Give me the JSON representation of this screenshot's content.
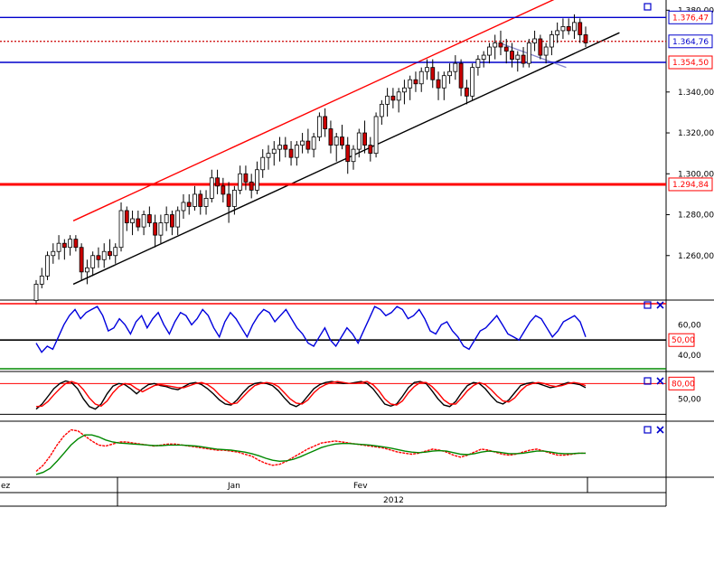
{
  "chart_data": [
    {
      "type": "candlestick",
      "panel": "price",
      "y_ticks": [
        "1.260,00",
        "1.280,00",
        "1.300,00",
        "1.320,00",
        "1.340,00",
        "1.380,00"
      ],
      "ylim": [
        1240,
        1385
      ],
      "markers": [
        {
          "label": "1.376,47",
          "value": 1376.47,
          "color": "#ff0000",
          "box": "#0000cc",
          "line": "#0000cc",
          "dash": false,
          "width": 1.4
        },
        {
          "label": "1.364,76",
          "value": 1364.76,
          "color": "#0000cc",
          "box": "#0000cc",
          "line": "#cc0000",
          "dash": true,
          "width": 1.2
        },
        {
          "label": "1.354,50",
          "value": 1354.5,
          "color": "#ff0000",
          "box": "#ff0000",
          "line": "#0000cc",
          "dash": false,
          "width": 1.6
        },
        {
          "label": "1.294,84",
          "value": 1294.84,
          "color": "#ff0000",
          "box": "#ff0000",
          "line": "#ff0000",
          "dash": false,
          "width": 3
        }
      ],
      "trend_lines": [
        {
          "color": "#ff0000",
          "points": [
            [
              0.11,
              1277
            ],
            [
              0.87,
              1391
            ]
          ]
        },
        {
          "color": "#000000",
          "points": [
            [
              0.11,
              1246
            ],
            [
              0.93,
              1369
            ]
          ]
        },
        {
          "color": "#8888cc",
          "points": [
            [
              0.75,
              1364
            ],
            [
              0.85,
              1352
            ]
          ]
        }
      ],
      "ohlc": [
        [
          1238,
          1248,
          1236,
          1246
        ],
        [
          1246,
          1254,
          1244,
          1250
        ],
        [
          1250,
          1262,
          1248,
          1260
        ],
        [
          1260,
          1266,
          1256,
          1262
        ],
        [
          1262,
          1270,
          1258,
          1266
        ],
        [
          1266,
          1268,
          1258,
          1264
        ],
        [
          1264,
          1270,
          1260,
          1268
        ],
        [
          1268,
          1270,
          1262,
          1264
        ],
        [
          1264,
          1266,
          1248,
          1252
        ],
        [
          1252,
          1258,
          1246,
          1254
        ],
        [
          1254,
          1262,
          1250,
          1260
        ],
        [
          1260,
          1264,
          1254,
          1258
        ],
        [
          1258,
          1266,
          1254,
          1262
        ],
        [
          1262,
          1268,
          1258,
          1260
        ],
        [
          1260,
          1266,
          1256,
          1264
        ],
        [
          1264,
          1286,
          1262,
          1282
        ],
        [
          1282,
          1284,
          1272,
          1276
        ],
        [
          1276,
          1282,
          1270,
          1278
        ],
        [
          1278,
          1282,
          1272,
          1274
        ],
        [
          1274,
          1282,
          1270,
          1280
        ],
        [
          1280,
          1284,
          1274,
          1276
        ],
        [
          1276,
          1280,
          1264,
          1270
        ],
        [
          1270,
          1280,
          1266,
          1276
        ],
        [
          1276,
          1284,
          1272,
          1280
        ],
        [
          1280,
          1282,
          1270,
          1274
        ],
        [
          1274,
          1284,
          1270,
          1282
        ],
        [
          1282,
          1290,
          1278,
          1286
        ],
        [
          1286,
          1290,
          1280,
          1284
        ],
        [
          1284,
          1294,
          1282,
          1290
        ],
        [
          1290,
          1292,
          1280,
          1284
        ],
        [
          1284,
          1292,
          1280,
          1288
        ],
        [
          1288,
          1302,
          1286,
          1298
        ],
        [
          1298,
          1302,
          1290,
          1294
        ],
        [
          1294,
          1298,
          1286,
          1290
        ],
        [
          1290,
          1296,
          1276,
          1284
        ],
        [
          1284,
          1294,
          1280,
          1292
        ],
        [
          1292,
          1304,
          1290,
          1300
        ],
        [
          1300,
          1304,
          1292,
          1296
        ],
        [
          1296,
          1300,
          1288,
          1292
        ],
        [
          1292,
          1306,
          1290,
          1302
        ],
        [
          1302,
          1312,
          1298,
          1308
        ],
        [
          1308,
          1314,
          1302,
          1310
        ],
        [
          1310,
          1316,
          1304,
          1312
        ],
        [
          1312,
          1318,
          1306,
          1314
        ],
        [
          1314,
          1318,
          1308,
          1312
        ],
        [
          1312,
          1316,
          1304,
          1308
        ],
        [
          1308,
          1316,
          1304,
          1314
        ],
        [
          1314,
          1320,
          1310,
          1316
        ],
        [
          1316,
          1322,
          1310,
          1312
        ],
        [
          1312,
          1320,
          1308,
          1318
        ],
        [
          1318,
          1330,
          1316,
          1328
        ],
        [
          1328,
          1332,
          1318,
          1322
        ],
        [
          1322,
          1326,
          1310,
          1314
        ],
        [
          1314,
          1320,
          1306,
          1318
        ],
        [
          1318,
          1324,
          1312,
          1314
        ],
        [
          1314,
          1318,
          1300,
          1306
        ],
        [
          1306,
          1314,
          1302,
          1312
        ],
        [
          1312,
          1322,
          1308,
          1320
        ],
        [
          1320,
          1326,
          1310,
          1314
        ],
        [
          1314,
          1318,
          1306,
          1310
        ],
        [
          1310,
          1330,
          1308,
          1328
        ],
        [
          1328,
          1336,
          1324,
          1334
        ],
        [
          1334,
          1342,
          1328,
          1338
        ],
        [
          1338,
          1342,
          1332,
          1336
        ],
        [
          1336,
          1342,
          1330,
          1340
        ],
        [
          1340,
          1346,
          1334,
          1342
        ],
        [
          1342,
          1348,
          1336,
          1346
        ],
        [
          1346,
          1350,
          1340,
          1344
        ],
        [
          1344,
          1352,
          1340,
          1350
        ],
        [
          1350,
          1356,
          1346,
          1352
        ],
        [
          1352,
          1356,
          1342,
          1346
        ],
        [
          1346,
          1350,
          1336,
          1342
        ],
        [
          1342,
          1350,
          1336,
          1348
        ],
        [
          1348,
          1354,
          1344,
          1350
        ],
        [
          1350,
          1358,
          1346,
          1354
        ],
        [
          1354,
          1356,
          1338,
          1342
        ],
        [
          1342,
          1346,
          1334,
          1338
        ],
        [
          1338,
          1354,
          1336,
          1352
        ],
        [
          1352,
          1358,
          1348,
          1356
        ],
        [
          1356,
          1360,
          1352,
          1358
        ],
        [
          1358,
          1364,
          1354,
          1362
        ],
        [
          1362,
          1368,
          1356,
          1364
        ],
        [
          1364,
          1370,
          1358,
          1362
        ],
        [
          1362,
          1366,
          1354,
          1360
        ],
        [
          1360,
          1364,
          1352,
          1356
        ],
        [
          1356,
          1360,
          1350,
          1358
        ],
        [
          1358,
          1362,
          1352,
          1354
        ],
        [
          1354,
          1366,
          1352,
          1364
        ],
        [
          1364,
          1370,
          1360,
          1366
        ],
        [
          1366,
          1368,
          1356,
          1358
        ],
        [
          1358,
          1364,
          1354,
          1362
        ],
        [
          1362,
          1370,
          1358,
          1368
        ],
        [
          1368,
          1374,
          1364,
          1370
        ],
        [
          1370,
          1376,
          1366,
          1372
        ],
        [
          1372,
          1376,
          1368,
          1370
        ],
        [
          1370,
          1378,
          1366,
          1374
        ],
        [
          1374,
          1376,
          1364,
          1368
        ],
        [
          1368,
          1372,
          1362,
          1364
        ]
      ]
    },
    {
      "type": "line",
      "panel": "oscillator_1",
      "y_ticks": [
        "60,00",
        "40,00"
      ],
      "ylim": [
        30,
        75
      ],
      "ref_line_label": "50,00",
      "ref_value": 50,
      "series": [
        {
          "color": "#0000dd",
          "values": [
            48,
            42,
            46,
            44,
            52,
            60,
            66,
            70,
            64,
            68,
            70,
            72,
            66,
            56,
            58,
            64,
            60,
            54,
            62,
            66,
            58,
            64,
            68,
            60,
            54,
            62,
            68,
            66,
            60,
            64,
            70,
            66,
            58,
            52,
            62,
            68,
            64,
            58,
            52,
            60,
            66,
            70,
            68,
            62,
            66,
            70,
            64,
            58,
            54,
            48,
            46,
            52,
            58,
            50,
            46,
            52,
            58,
            54,
            48,
            56,
            64,
            72,
            70,
            66,
            68,
            72,
            70,
            64,
            66,
            70,
            64,
            56,
            54,
            60,
            62,
            56,
            52,
            46,
            44,
            50,
            56,
            58,
            62,
            66,
            60,
            54,
            52,
            50,
            56,
            62,
            66,
            64,
            58,
            52,
            56,
            62,
            64,
            66,
            62,
            52
          ]
        }
      ]
    },
    {
      "type": "line",
      "panel": "stochastic",
      "y_ticks": [
        "50,00"
      ],
      "ylim": [
        10,
        100
      ],
      "ref_line_label": "80,00",
      "ref_value": 80,
      "series": [
        {
          "color": "#000000",
          "values": [
            30,
            40,
            55,
            70,
            80,
            85,
            82,
            70,
            50,
            35,
            30,
            40,
            60,
            75,
            80,
            78,
            70,
            60,
            70,
            78,
            80,
            76,
            74,
            70,
            68,
            74,
            80,
            82,
            78,
            70,
            60,
            48,
            40,
            38,
            48,
            62,
            74,
            80,
            82,
            80,
            76,
            66,
            52,
            40,
            35,
            42,
            56,
            70,
            78,
            82,
            84,
            82,
            80,
            80,
            82,
            84,
            80,
            70,
            55,
            40,
            36,
            40,
            55,
            72,
            82,
            84,
            80,
            66,
            50,
            38,
            35,
            45,
            62,
            76,
            82,
            80,
            70,
            56,
            44,
            40,
            48,
            62,
            76,
            80,
            82,
            80,
            76,
            72,
            74,
            78,
            82,
            80,
            78,
            72
          ]
        },
        {
          "color": "#ff0000",
          "values": [
            35,
            36,
            45,
            58,
            70,
            80,
            84,
            80,
            68,
            52,
            40,
            36,
            46,
            62,
            74,
            80,
            78,
            70,
            64,
            70,
            76,
            78,
            76,
            74,
            72,
            72,
            76,
            80,
            82,
            78,
            70,
            58,
            48,
            40,
            42,
            54,
            66,
            76,
            80,
            82,
            80,
            74,
            62,
            50,
            42,
            40,
            48,
            62,
            72,
            78,
            82,
            84,
            82,
            80,
            80,
            82,
            84,
            78,
            66,
            50,
            40,
            38,
            46,
            62,
            74,
            82,
            82,
            74,
            62,
            48,
            40,
            40,
            52,
            66,
            76,
            82,
            78,
            68,
            56,
            46,
            44,
            52,
            66,
            76,
            80,
            82,
            80,
            76,
            74,
            76,
            80,
            82,
            80,
            76
          ]
        }
      ]
    },
    {
      "type": "line",
      "panel": "indicator_3",
      "ylim": [
        0,
        100
      ],
      "series": [
        {
          "color": "#ff0000",
          "dash": true,
          "values": [
            8,
            20,
            38,
            60,
            78,
            90,
            88,
            78,
            68,
            60,
            58,
            62,
            66,
            66,
            64,
            62,
            60,
            58,
            60,
            62,
            62,
            60,
            58,
            56,
            54,
            52,
            50,
            50,
            48,
            46,
            42,
            38,
            30,
            24,
            20,
            22,
            28,
            36,
            44,
            52,
            58,
            64,
            66,
            68,
            66,
            64,
            62,
            60,
            58,
            56,
            54,
            50,
            46,
            44,
            42,
            44,
            48,
            52,
            50,
            46,
            40,
            36,
            40,
            46,
            52,
            50,
            46,
            42,
            40,
            42,
            46,
            50,
            52,
            48,
            44,
            40,
            40,
            42,
            44,
            44
          ]
        },
        {
          "color": "#008800",
          "values": [
            2,
            6,
            14,
            28,
            44,
            60,
            72,
            80,
            80,
            76,
            70,
            66,
            64,
            63,
            62,
            61,
            60,
            59,
            59,
            60,
            60,
            60,
            59,
            58,
            56,
            54,
            52,
            51,
            50,
            48,
            46,
            43,
            39,
            34,
            30,
            28,
            29,
            32,
            37,
            43,
            49,
            55,
            59,
            62,
            63,
            63,
            62,
            61,
            60,
            58,
            56,
            54,
            51,
            48,
            46,
            45,
            46,
            48,
            49,
            48,
            45,
            42,
            41,
            43,
            46,
            48,
            47,
            45,
            43,
            43,
            44,
            46,
            48,
            48,
            46,
            44,
            43,
            43,
            44,
            44
          ]
        }
      ]
    }
  ],
  "x_axis": {
    "month_labels": [
      "ez",
      "Jan",
      "Fev"
    ],
    "year_label": "2012"
  },
  "panel_icons": [
    "square-icon",
    "close-x-icon"
  ]
}
